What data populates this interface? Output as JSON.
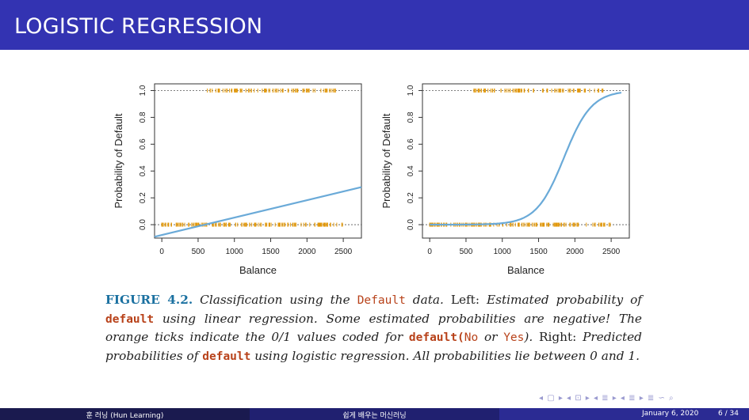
{
  "slide": {
    "title": "LOGISTIC REGRESSION"
  },
  "figure": {
    "label": "FIGURE 4.2.",
    "caption_parts": [
      "Classification using the",
      "Default",
      "data.",
      "Left:",
      "Estimated probability of",
      "default",
      "using linear regression. Some estimated probabilities are negative! The orange ticks indicate the 0/1 values coded for",
      "default(",
      "No",
      "or",
      "Yes",
      ").",
      "Right:",
      "Predicted probabilities of",
      "default",
      "using logistic regression. All probabilities lie between 0 and 1."
    ]
  },
  "chart_data": [
    {
      "type": "line",
      "panel": "left",
      "xlabel": "Balance",
      "ylabel": "Probability of Default",
      "xlim": [
        -100,
        2750
      ],
      "ylim": [
        -0.1,
        1.05
      ],
      "x_ticks": [
        "0",
        "500",
        "1000",
        "1500",
        "2000",
        "2500"
      ],
      "y_ticks": [
        "0.0",
        "0.2",
        "0.4",
        "0.6",
        "0.8",
        "1.0"
      ],
      "series": [
        {
          "kind": "line",
          "color": "#6aaad8",
          "x": [
            -100,
            2750
          ],
          "y": [
            -0.09,
            0.28
          ]
        }
      ],
      "rugs": {
        "color": "#e29500",
        "zero_range": [
          0,
          2500
        ],
        "one_range": [
          600,
          2400
        ]
      },
      "reference_lines": [
        0,
        1
      ]
    },
    {
      "type": "line",
      "panel": "right",
      "xlabel": "Balance",
      "ylabel": "Probability of Default",
      "xlim": [
        -100,
        2750
      ],
      "ylim": [
        -0.1,
        1.05
      ],
      "x_ticks": [
        "0",
        "500",
        "1000",
        "1500",
        "2000",
        "2500"
      ],
      "y_ticks": [
        "0.0",
        "0.2",
        "0.4",
        "0.6",
        "0.8",
        "1.0"
      ],
      "series": [
        {
          "kind": "logistic",
          "color": "#6aaad8",
          "x": [
            0,
            500,
            1000,
            1200,
            1400,
            1600,
            1800,
            2000,
            2200,
            2400,
            2650
          ],
          "y": [
            0.0,
            0.0,
            0.01,
            0.02,
            0.05,
            0.15,
            0.38,
            0.66,
            0.86,
            0.95,
            0.98
          ]
        }
      ],
      "rugs": {
        "color": "#e29500",
        "zero_range": [
          0,
          2500
        ],
        "one_range": [
          600,
          2400
        ]
      },
      "reference_lines": [
        0,
        1
      ]
    }
  ],
  "nav": {
    "symbols": "◂ ▢ ▸ ◂ ⊡ ▸ ◂ ≣ ▸ ◂ ≣ ▸ ≣ ∽ ⌕"
  },
  "footer": {
    "author": "훈 러닝 (Hun Learning)",
    "title": "쉽게 배우는 머신러닝",
    "date": "January 6, 2020",
    "page": "6 / 34"
  }
}
